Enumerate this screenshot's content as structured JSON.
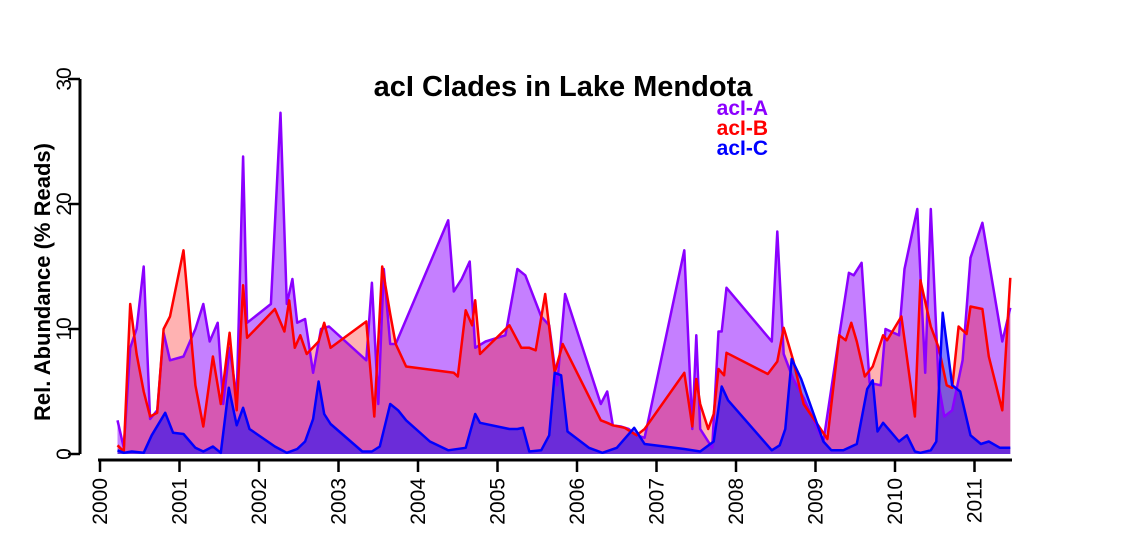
{
  "chart_data": {
    "type": "area",
    "title": "acI Clades in Lake Mendota",
    "xlabel": "",
    "ylabel": "Rel. Abundance (% Reads)",
    "xlim": [
      2000,
      2011.45
    ],
    "ylim": [
      0,
      30
    ],
    "x_ticks": [
      "2000",
      "2001",
      "2002",
      "2003",
      "2004",
      "2005",
      "2006",
      "2007",
      "2008",
      "2009",
      "2010",
      "2011"
    ],
    "y_ticks": [
      "0",
      "10",
      "20",
      "30"
    ],
    "grid": false,
    "legend_position": "top-right",
    "series": [
      {
        "name": "acI-A",
        "color": "#8B00FF",
        "fill": "rgba(139,0,255,0.5)",
        "points": [
          [
            2000.22,
            2.7
          ],
          [
            2000.3,
            0.5
          ],
          [
            2000.38,
            8.5
          ],
          [
            2000.46,
            10
          ],
          [
            2000.55,
            15
          ],
          [
            2000.63,
            2.8
          ],
          [
            2000.72,
            3.5
          ],
          [
            2000.8,
            9.7
          ],
          [
            2000.88,
            7.5
          ],
          [
            2001.05,
            7.8
          ],
          [
            2001.2,
            10
          ],
          [
            2001.3,
            12
          ],
          [
            2001.38,
            9
          ],
          [
            2001.48,
            10.5
          ],
          [
            2001.55,
            4
          ],
          [
            2001.63,
            8.5
          ],
          [
            2001.72,
            4.5
          ],
          [
            2001.8,
            23.8
          ],
          [
            2001.85,
            10.5
          ],
          [
            2002.15,
            12
          ],
          [
            2002.27,
            27.3
          ],
          [
            2002.35,
            12
          ],
          [
            2002.42,
            14
          ],
          [
            2002.48,
            10.5
          ],
          [
            2002.58,
            10.8
          ],
          [
            2002.68,
            6.5
          ],
          [
            2002.78,
            10
          ],
          [
            2002.88,
            10.2
          ],
          [
            2003.35,
            7.5
          ],
          [
            2003.42,
            13.7
          ],
          [
            2003.5,
            4
          ],
          [
            2003.57,
            14.8
          ],
          [
            2003.65,
            8.8
          ],
          [
            2003.72,
            8.8
          ],
          [
            2004.38,
            18.7
          ],
          [
            2004.45,
            13
          ],
          [
            2004.55,
            14
          ],
          [
            2004.65,
            15.4
          ],
          [
            2004.72,
            8.5
          ],
          [
            2004.85,
            9
          ],
          [
            2005.1,
            9.5
          ],
          [
            2005.25,
            14.8
          ],
          [
            2005.35,
            14.3
          ],
          [
            2005.55,
            11
          ],
          [
            2005.65,
            10.3
          ],
          [
            2005.75,
            5.5
          ],
          [
            2005.85,
            12.8
          ],
          [
            2006.3,
            4
          ],
          [
            2006.38,
            5
          ],
          [
            2006.45,
            2.3
          ],
          [
            2006.55,
            2.2
          ],
          [
            2006.65,
            2
          ],
          [
            2006.75,
            1.5
          ],
          [
            2006.85,
            1.3
          ],
          [
            2007.35,
            16.3
          ],
          [
            2007.45,
            2
          ],
          [
            2007.5,
            9.5
          ],
          [
            2007.55,
            2
          ],
          [
            2007.7,
            0.5
          ],
          [
            2007.78,
            9.8
          ],
          [
            2007.82,
            9.8
          ],
          [
            2007.88,
            13.3
          ],
          [
            2008.45,
            9
          ],
          [
            2008.52,
            17.8
          ],
          [
            2008.6,
            8
          ],
          [
            2008.72,
            6
          ],
          [
            2008.85,
            4.5
          ],
          [
            2009.1,
            1
          ],
          [
            2009.3,
            9.5
          ],
          [
            2009.42,
            14.5
          ],
          [
            2009.48,
            14.3
          ],
          [
            2009.58,
            15.3
          ],
          [
            2009.68,
            5.7
          ],
          [
            2009.82,
            5.5
          ],
          [
            2009.88,
            10
          ],
          [
            2010.05,
            9.5
          ],
          [
            2010.12,
            14.8
          ],
          [
            2010.28,
            19.6
          ],
          [
            2010.38,
            6.5
          ],
          [
            2010.45,
            19.6
          ],
          [
            2010.55,
            5.5
          ],
          [
            2010.62,
            3
          ],
          [
            2010.72,
            3.5
          ],
          [
            2010.85,
            7.5
          ],
          [
            2010.95,
            15.7
          ],
          [
            2011.1,
            18.5
          ],
          [
            2011.35,
            9
          ],
          [
            2011.45,
            11.7
          ]
        ]
      },
      {
        "name": "acI-B",
        "color": "#FF0000",
        "fill": "rgba(255,0,0,0.3)",
        "points": [
          [
            2000.22,
            0.7
          ],
          [
            2000.3,
            0.2
          ],
          [
            2000.38,
            12
          ],
          [
            2000.46,
            8
          ],
          [
            2000.55,
            5
          ],
          [
            2000.63,
            3
          ],
          [
            2000.72,
            3.3
          ],
          [
            2000.8,
            10
          ],
          [
            2000.88,
            11
          ],
          [
            2001.05,
            16.3
          ],
          [
            2001.2,
            5.5
          ],
          [
            2001.3,
            2.2
          ],
          [
            2001.42,
            7.8
          ],
          [
            2001.52,
            4
          ],
          [
            2001.63,
            9.7
          ],
          [
            2001.72,
            3.5
          ],
          [
            2001.8,
            13.5
          ],
          [
            2001.85,
            9.3
          ],
          [
            2002.2,
            11.6
          ],
          [
            2002.32,
            9.8
          ],
          [
            2002.38,
            12.3
          ],
          [
            2002.45,
            8.5
          ],
          [
            2002.52,
            9.5
          ],
          [
            2002.6,
            8
          ],
          [
            2002.75,
            9
          ],
          [
            2002.82,
            10.5
          ],
          [
            2002.9,
            8.5
          ],
          [
            2003.35,
            10.6
          ],
          [
            2003.45,
            3
          ],
          [
            2003.55,
            15
          ],
          [
            2003.65,
            11.2
          ],
          [
            2003.72,
            8.8
          ],
          [
            2003.85,
            7
          ],
          [
            2004.45,
            6.5
          ],
          [
            2004.5,
            6.2
          ],
          [
            2004.6,
            11.5
          ],
          [
            2004.68,
            10.3
          ],
          [
            2004.72,
            12.3
          ],
          [
            2004.78,
            8
          ],
          [
            2005.15,
            10.3
          ],
          [
            2005.3,
            8.5
          ],
          [
            2005.4,
            8.5
          ],
          [
            2005.48,
            8.3
          ],
          [
            2005.6,
            12.8
          ],
          [
            2005.72,
            6.5
          ],
          [
            2005.82,
            8.8
          ],
          [
            2006.3,
            2.7
          ],
          [
            2006.38,
            2.5
          ],
          [
            2006.45,
            2.3
          ],
          [
            2006.6,
            2.1
          ],
          [
            2006.75,
            1.5
          ],
          [
            2006.85,
            2
          ],
          [
            2007.35,
            6.5
          ],
          [
            2007.45,
            2.2
          ],
          [
            2007.5,
            6
          ],
          [
            2007.55,
            4
          ],
          [
            2007.65,
            2
          ],
          [
            2007.72,
            3.2
          ],
          [
            2007.78,
            6.8
          ],
          [
            2007.85,
            6.3
          ],
          [
            2007.88,
            8.1
          ],
          [
            2008.4,
            6.4
          ],
          [
            2008.52,
            7.4
          ],
          [
            2008.6,
            10.1
          ],
          [
            2008.72,
            7.5
          ],
          [
            2008.85,
            4
          ],
          [
            2009.15,
            1.2
          ],
          [
            2009.3,
            9.5
          ],
          [
            2009.38,
            9.1
          ],
          [
            2009.45,
            10.5
          ],
          [
            2009.52,
            9
          ],
          [
            2009.62,
            6.2
          ],
          [
            2009.72,
            7
          ],
          [
            2009.85,
            9.5
          ],
          [
            2009.9,
            9.1
          ],
          [
            2010.08,
            11
          ],
          [
            2010.25,
            3
          ],
          [
            2010.32,
            13.9
          ],
          [
            2010.45,
            10.2
          ],
          [
            2010.55,
            8.5
          ],
          [
            2010.65,
            5.5
          ],
          [
            2010.72,
            5.3
          ],
          [
            2010.8,
            10.2
          ],
          [
            2010.9,
            9.6
          ],
          [
            2010.95,
            11.8
          ],
          [
            2011.1,
            11.6
          ],
          [
            2011.18,
            7.8
          ],
          [
            2011.35,
            3.5
          ],
          [
            2011.45,
            14.1
          ]
        ]
      },
      {
        "name": "acI-C",
        "color": "#0000FF",
        "fill": "rgba(0,0,255,0.5)",
        "points": [
          [
            2000.22,
            0.3
          ],
          [
            2000.3,
            0.1
          ],
          [
            2000.4,
            0.2
          ],
          [
            2000.55,
            0.1
          ],
          [
            2000.65,
            1.5
          ],
          [
            2000.82,
            3.3
          ],
          [
            2000.92,
            1.7
          ],
          [
            2001.05,
            1.6
          ],
          [
            2001.2,
            0.5
          ],
          [
            2001.3,
            0.2
          ],
          [
            2001.42,
            0.6
          ],
          [
            2001.52,
            0.1
          ],
          [
            2001.62,
            5.3
          ],
          [
            2001.72,
            2.3
          ],
          [
            2001.8,
            3.7
          ],
          [
            2001.88,
            2
          ],
          [
            2002.2,
            0.6
          ],
          [
            2002.35,
            0.1
          ],
          [
            2002.48,
            0.4
          ],
          [
            2002.58,
            1
          ],
          [
            2002.68,
            2.8
          ],
          [
            2002.75,
            5.8
          ],
          [
            2002.82,
            3.2
          ],
          [
            2002.9,
            2.4
          ],
          [
            2003.3,
            0.2
          ],
          [
            2003.42,
            0.2
          ],
          [
            2003.52,
            0.6
          ],
          [
            2003.65,
            4
          ],
          [
            2003.75,
            3.5
          ],
          [
            2003.85,
            2.7
          ],
          [
            2004.15,
            1
          ],
          [
            2004.38,
            0.3
          ],
          [
            2004.6,
            0.5
          ],
          [
            2004.72,
            3.2
          ],
          [
            2004.78,
            2.5
          ],
          [
            2005.15,
            2
          ],
          [
            2005.25,
            2
          ],
          [
            2005.32,
            2.1
          ],
          [
            2005.4,
            0.2
          ],
          [
            2005.55,
            0.3
          ],
          [
            2005.65,
            1.5
          ],
          [
            2005.72,
            6.5
          ],
          [
            2005.8,
            6.3
          ],
          [
            2005.88,
            1.8
          ],
          [
            2006.15,
            0.5
          ],
          [
            2006.32,
            0.1
          ],
          [
            2006.5,
            0.5
          ],
          [
            2006.72,
            2.1
          ],
          [
            2006.85,
            0.8
          ],
          [
            2007.35,
            0.4
          ],
          [
            2007.55,
            0.2
          ],
          [
            2007.72,
            1
          ],
          [
            2007.82,
            5.4
          ],
          [
            2007.9,
            4.3
          ],
          [
            2008.45,
            0.3
          ],
          [
            2008.55,
            0.7
          ],
          [
            2008.62,
            2
          ],
          [
            2008.7,
            7.6
          ],
          [
            2008.82,
            6
          ],
          [
            2009.1,
            1
          ],
          [
            2009.2,
            0.3
          ],
          [
            2009.35,
            0.3
          ],
          [
            2009.52,
            0.8
          ],
          [
            2009.65,
            5.2
          ],
          [
            2009.72,
            5.9
          ],
          [
            2009.78,
            1.8
          ],
          [
            2009.85,
            2.5
          ],
          [
            2010.05,
            1
          ],
          [
            2010.15,
            1.5
          ],
          [
            2010.25,
            0.2
          ],
          [
            2010.32,
            0.1
          ],
          [
            2010.45,
            0.3
          ],
          [
            2010.52,
            1
          ],
          [
            2010.6,
            11.3
          ],
          [
            2010.72,
            5.5
          ],
          [
            2010.82,
            5
          ],
          [
            2010.95,
            1.5
          ],
          [
            2011.08,
            0.8
          ],
          [
            2011.18,
            1
          ],
          [
            2011.32,
            0.5
          ],
          [
            2011.45,
            0.5
          ]
        ]
      }
    ]
  }
}
